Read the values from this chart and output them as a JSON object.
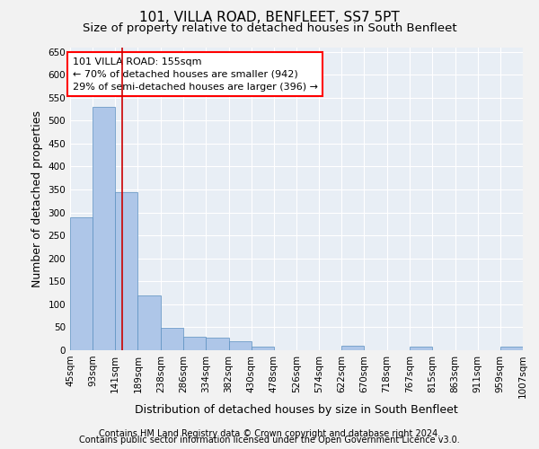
{
  "title": "101, VILLA ROAD, BENFLEET, SS7 5PT",
  "subtitle": "Size of property relative to detached houses in South Benfleet",
  "xlabel": "Distribution of detached houses by size in South Benfleet",
  "ylabel": "Number of detached properties",
  "footnote1": "Contains HM Land Registry data © Crown copyright and database right 2024.",
  "footnote2": "Contains public sector information licensed under the Open Government Licence v3.0.",
  "annotation_line1": "101 VILLA ROAD: 155sqm",
  "annotation_line2": "← 70% of detached houses are smaller (942)",
  "annotation_line3": "29% of semi-detached houses are larger (396) →",
  "property_size": 155,
  "bar_edges": [
    45,
    93,
    141,
    189,
    238,
    286,
    334,
    382,
    430,
    478,
    526,
    574,
    622,
    670,
    718,
    767,
    815,
    863,
    911,
    959,
    1007
  ],
  "bar_values": [
    290,
    530,
    345,
    120,
    48,
    30,
    27,
    20,
    8,
    0,
    0,
    0,
    10,
    0,
    0,
    8,
    0,
    0,
    0,
    8
  ],
  "bar_color": "#aec6e8",
  "bar_edge_color": "#5a8fc0",
  "vline_color": "#cc0000",
  "vline_x": 155,
  "ylim": [
    0,
    660
  ],
  "yticks": [
    0,
    50,
    100,
    150,
    200,
    250,
    300,
    350,
    400,
    450,
    500,
    550,
    600,
    650
  ],
  "bg_color": "#e8eef5",
  "grid_color": "#ffffff",
  "fig_bg_color": "#f2f2f2",
  "title_fontsize": 11,
  "subtitle_fontsize": 9.5,
  "axis_label_fontsize": 9,
  "tick_fontsize": 7.5,
  "footnote_fontsize": 7
}
